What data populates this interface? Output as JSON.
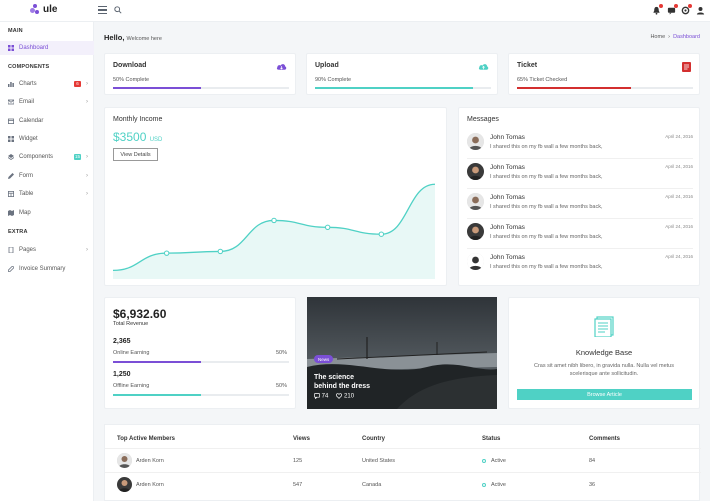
{
  "app": {
    "logo_text": "ule"
  },
  "sidebar": {
    "sections": {
      "main": "MAIN",
      "components": "COMPONENTS",
      "extra": "EXTRA"
    },
    "items": [
      {
        "label": "Dashboard",
        "icon": "grid-icon"
      },
      {
        "label": "Charts",
        "icon": "chart-icon",
        "badge": "6",
        "badge_color": "#e53935"
      },
      {
        "label": "Email",
        "icon": "mail-icon"
      },
      {
        "label": "Calendar",
        "icon": "calendar-icon"
      },
      {
        "label": "Widget",
        "icon": "widget-icon"
      },
      {
        "label": "Components",
        "icon": "puzzle-icon",
        "badge": "15",
        "badge_color": "#4fd1c5"
      },
      {
        "label": "Form",
        "icon": "form-icon"
      },
      {
        "label": "Table",
        "icon": "table-icon"
      },
      {
        "label": "Map",
        "icon": "map-icon"
      },
      {
        "label": "Pages",
        "icon": "pages-icon"
      },
      {
        "label": "Invoice Summary",
        "icon": "invoice-icon"
      }
    ]
  },
  "header": {
    "hello": "Hello,",
    "welcome": "Welcome here"
  },
  "breadcrumb": {
    "home": "Home",
    "current": "Dashboard"
  },
  "stats": [
    {
      "title": "Download",
      "sub": "50% Complete",
      "progress": 0.5,
      "color": "#7b4fd6",
      "icon": "cloud-download-icon"
    },
    {
      "title": "Upload",
      "sub": "90% Complete",
      "progress": 0.9,
      "color": "#4fd1c5",
      "icon": "cloud-upload-icon"
    },
    {
      "title": "Ticket",
      "sub": "65% Ticket Checked",
      "progress": 0.65,
      "color": "#d32f2f",
      "icon": "ticket-icon"
    }
  ],
  "income": {
    "title": "Monthly Income",
    "value": "$3500",
    "unit": "USD",
    "button": "View Details"
  },
  "chart_data": {
    "type": "area",
    "x": [
      1,
      2,
      3,
      4,
      5,
      6,
      7
    ],
    "values": [
      10,
      30,
      32,
      68,
      60,
      52,
      110
    ],
    "ylim": [
      0,
      130
    ],
    "color": "#4fd1c5"
  },
  "messages": {
    "title": "Messages",
    "items": [
      {
        "name": "John Tomas",
        "text": "I shared this on my fb wall a few months back,",
        "date": "April 24, 2016"
      },
      {
        "name": "John Tomas",
        "text": "I shared this on my fb wall a few months back,",
        "date": "April 24, 2016"
      },
      {
        "name": "John Tomas",
        "text": "I shared this on my fb wall a few months back,",
        "date": "April 24, 2016"
      },
      {
        "name": "John Tomas",
        "text": "I shared this on my fb wall a few months back,",
        "date": "April 24, 2016"
      },
      {
        "name": "John Tomas",
        "text": "I shared this on my fb wall a few months back,",
        "date": "April 24, 2016"
      }
    ]
  },
  "revenue": {
    "value": "$6,932.60",
    "label": "Total Revenue",
    "online": {
      "num": "2,365",
      "label": "Online Earning",
      "pct": "50%",
      "progress": 0.5
    },
    "offline": {
      "num": "1,250",
      "label": "Offline Earning",
      "pct": "50%",
      "progress": 0.5
    }
  },
  "news": {
    "tag": "News",
    "title_1": "The science",
    "title_2": "behind the dress",
    "comments": "74",
    "likes": "210"
  },
  "kb": {
    "title": "Knowledge Base",
    "text_1": "Cras sit amet nibh libero, in gravida nulla. Nulla vel metus",
    "text_2": "scelerisque ante sollicitudin.",
    "button": "Browse Article"
  },
  "table": {
    "headers": [
      "Top Active Members",
      "Views",
      "Country",
      "Status",
      "Comments"
    ],
    "rows": [
      {
        "name": "Arden Korn",
        "views": "125",
        "country": "United States",
        "status": "Active",
        "comments": "84"
      },
      {
        "name": "Arden Korn",
        "views": "547",
        "country": "Canada",
        "status": "Active",
        "comments": "36"
      }
    ]
  }
}
